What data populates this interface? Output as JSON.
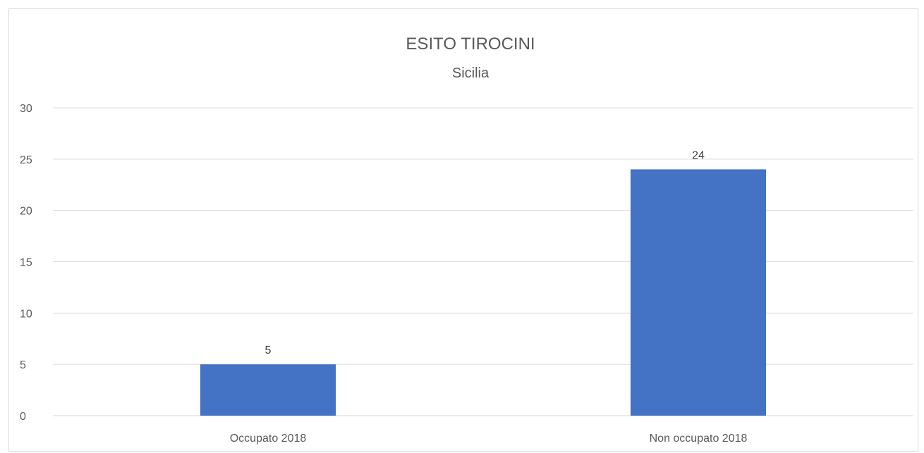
{
  "chart_data": {
    "type": "bar",
    "title": "ESITO TIROCINI",
    "subtitle": "Sicilia",
    "categories": [
      "Occupato 2018",
      "Non occupato 2018"
    ],
    "values": [
      5,
      24
    ],
    "data_labels": [
      "5",
      "24"
    ],
    "ylim": [
      0,
      30
    ],
    "yticks": [
      0,
      5,
      10,
      15,
      20,
      25,
      30
    ],
    "xlabel": "",
    "ylabel": "",
    "grid": true,
    "legend": "none",
    "bar_color": "#4472c4"
  }
}
